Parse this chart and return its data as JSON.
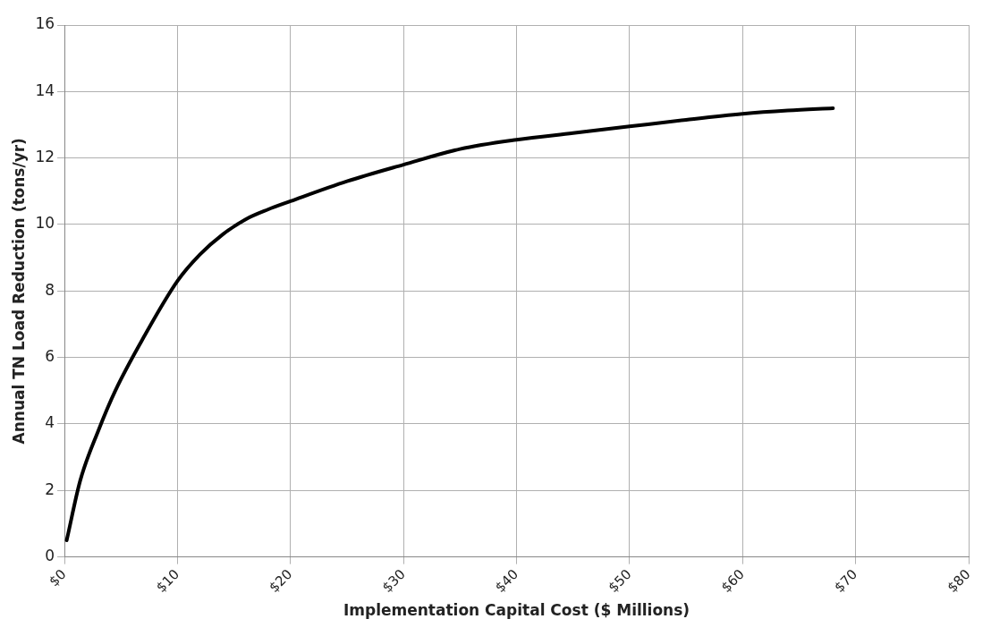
{
  "chart_data": {
    "type": "line",
    "xlabel": "Implementation Capital Cost ($ Millions)",
    "ylabel": "Annual TN Load Reduction (tons/yr)",
    "series": [
      {
        "color": "#000000",
        "x": [
          0.2,
          1.4,
          3,
          4.5,
          7,
          10,
          12,
          14,
          16,
          18,
          20,
          25,
          30,
          35,
          40,
          45,
          50,
          55,
          60,
          64,
          68
        ],
        "values": [
          0.5,
          2.3,
          3.8,
          5.0,
          6.6,
          8.3,
          9.1,
          9.7,
          10.15,
          10.45,
          10.7,
          11.3,
          11.8,
          12.27,
          12.55,
          12.75,
          12.95,
          13.15,
          13.33,
          13.43,
          13.5
        ]
      }
    ],
    "xlim": [
      0,
      80
    ],
    "xticks": [
      {
        "value": 0,
        "label": "$0"
      },
      {
        "value": 10,
        "label": "$10"
      },
      {
        "value": 20,
        "label": "$20"
      },
      {
        "value": 30,
        "label": "$30"
      },
      {
        "value": 40,
        "label": "$40"
      },
      {
        "value": 50,
        "label": "$50"
      },
      {
        "value": 60,
        "label": "$60"
      },
      {
        "value": 70,
        "label": "$70"
      },
      {
        "value": 80,
        "label": "$80"
      }
    ],
    "ylim": [
      0,
      16
    ],
    "yticks": [
      0,
      2,
      4,
      6,
      8,
      10,
      12,
      14,
      16
    ],
    "grid": true,
    "legend": false,
    "marker": "none",
    "line_style": "solid"
  }
}
